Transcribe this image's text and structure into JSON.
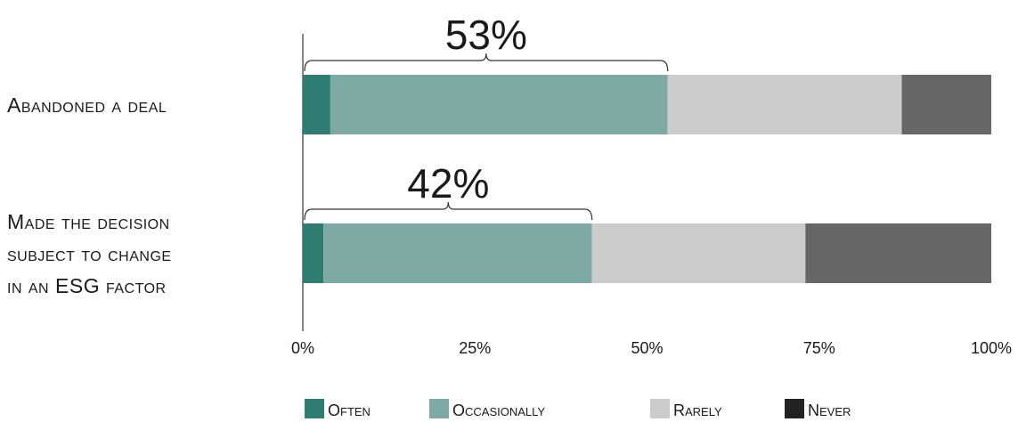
{
  "chart_data": {
    "type": "bar",
    "orientation": "horizontal",
    "stacked": true,
    "categories": [
      "Abandoned a deal",
      "Made the decision subject to change in an ESG factor"
    ],
    "category_lines": [
      [
        "Abandoned a deal"
      ],
      [
        "Made the decision",
        "subject to change",
        "in an ESG factor"
      ]
    ],
    "series": [
      {
        "name": "Often",
        "color": "#2e7d72",
        "values": [
          4,
          3
        ]
      },
      {
        "name": "Occasionally",
        "color": "#7eaaa6",
        "values": [
          49,
          39
        ]
      },
      {
        "name": "Rarely",
        "color": "#cccccc",
        "values": [
          34,
          31
        ]
      },
      {
        "name": "Never",
        "color": "#666666",
        "values": [
          13,
          27
        ]
      }
    ],
    "xlim": [
      0,
      100
    ],
    "xticks": [
      "0%",
      "25%",
      "50%",
      "75%",
      "100%"
    ],
    "annotations": [
      {
        "label": "53%",
        "category_index": 0,
        "from": 0,
        "to": 53
      },
      {
        "label": "42%",
        "category_index": 1,
        "from": 0,
        "to": 42
      }
    ],
    "legend": {
      "placement": "bottom"
    },
    "grid": false
  }
}
